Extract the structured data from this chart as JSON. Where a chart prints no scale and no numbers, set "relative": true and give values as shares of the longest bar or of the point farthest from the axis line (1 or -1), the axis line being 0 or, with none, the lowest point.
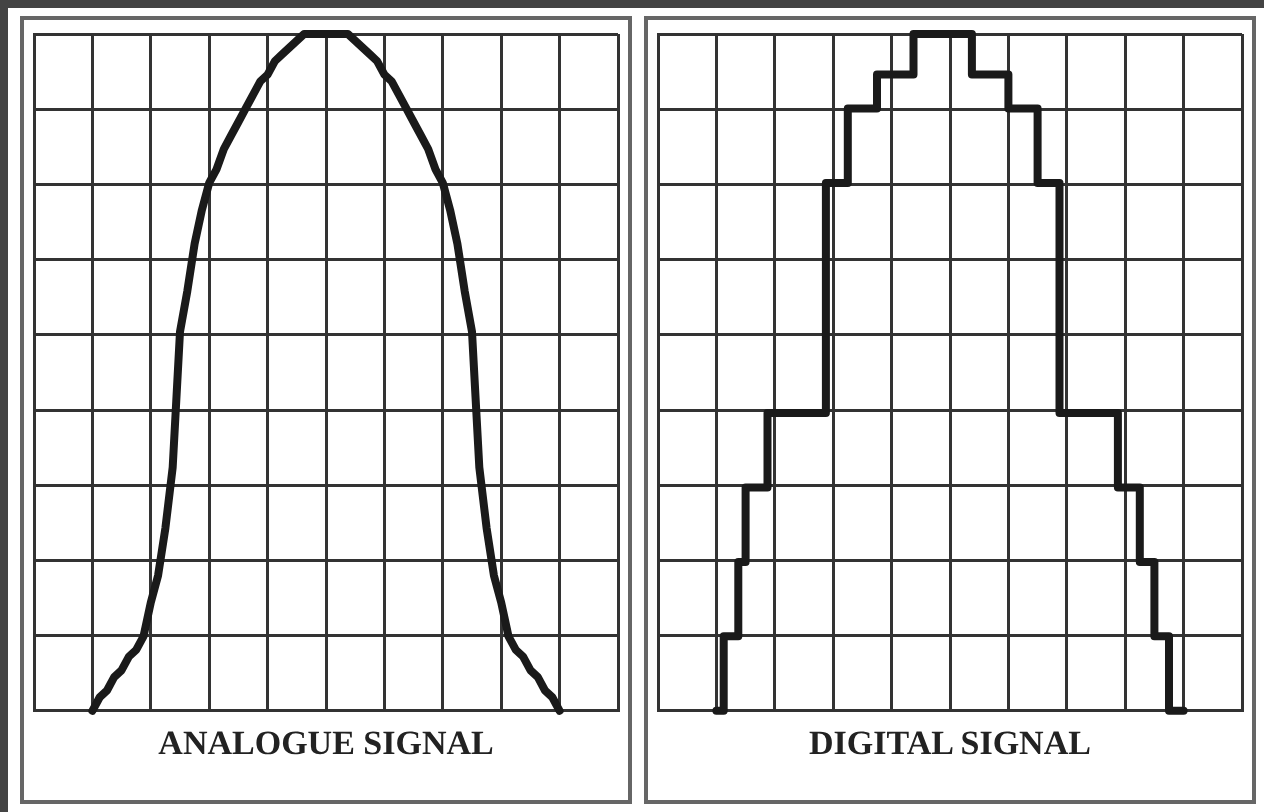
{
  "chart_data": [
    {
      "type": "line",
      "title": "ANALOGUE SIGNAL",
      "relative": true,
      "grid": true,
      "color": "#1a1a1a",
      "marker": "none",
      "line_style": "solid",
      "categories": [
        null,
        null,
        null,
        null,
        null,
        null,
        null,
        null,
        null,
        null,
        null,
        null,
        null,
        null,
        null,
        null,
        null,
        null,
        null,
        null,
        null,
        null,
        null,
        null,
        null,
        null,
        null,
        null,
        null,
        null,
        null,
        null,
        null,
        null,
        null,
        null,
        null,
        null,
        null,
        null,
        null,
        null,
        null,
        null,
        null,
        null,
        null,
        null,
        null,
        null,
        null,
        null,
        null,
        null,
        null,
        null,
        null,
        null,
        null,
        null,
        null,
        null,
        null,
        null,
        null,
        null,
        null,
        null,
        null,
        null,
        null,
        null,
        null,
        null,
        null,
        null,
        null,
        null,
        null,
        null,
        null
      ],
      "values": [
        null,
        null,
        null,
        null,
        null,
        null,
        null,
        null,
        0,
        0.02,
        0.03,
        0.05,
        0.06,
        0.08,
        0.09,
        0.11,
        0.16,
        0.2,
        0.27,
        0.36,
        0.56,
        0.62,
        0.69,
        0.74,
        0.78,
        0.8,
        0.83,
        0.85,
        0.87,
        0.89,
        0.91,
        0.93,
        0.94,
        0.96,
        0.97,
        0.98,
        0.99,
        1,
        1,
        1,
        1,
        1,
        1,
        1,
        0.99,
        0.98,
        0.97,
        0.96,
        0.94,
        0.93,
        0.91,
        0.89,
        0.87,
        0.85,
        0.83,
        0.8,
        0.78,
        0.74,
        0.69,
        0.62,
        0.56,
        0.36,
        0.27,
        0.2,
        0.16,
        0.11,
        0.09,
        0.08,
        0.06,
        0.05,
        0.03,
        0.02,
        0,
        null,
        null,
        null,
        null,
        null,
        null,
        null,
        null
      ]
    },
    {
      "type": "step",
      "title": "DIGITAL SIGNAL",
      "relative": true,
      "grid": true,
      "color": "#1a1a1a",
      "marker": "none",
      "line_style": "solid",
      "categories": [
        null,
        null,
        null,
        null,
        null,
        null,
        null,
        null,
        null,
        null,
        null,
        null,
        null,
        null,
        null,
        null,
        null,
        null,
        null,
        null,
        null,
        null,
        null,
        null,
        null,
        null,
        null,
        null,
        null,
        null,
        null,
        null,
        null,
        null,
        null,
        null,
        null,
        null,
        null,
        null,
        null,
        null,
        null,
        null,
        null,
        null,
        null,
        null,
        null,
        null,
        null,
        null,
        null,
        null,
        null,
        null,
        null,
        null,
        null,
        null,
        null,
        null,
        null,
        null,
        null,
        null,
        null,
        null,
        null,
        null,
        null,
        null,
        null,
        null,
        null,
        null,
        null,
        null,
        null,
        null,
        null
      ],
      "values": [
        null,
        null,
        null,
        null,
        null,
        null,
        null,
        null,
        0,
        0,
        0.11,
        0.11,
        0.22,
        0.33,
        0.33,
        0.33,
        0.44,
        0.44,
        0.44,
        0.44,
        0.44,
        0.44,
        0.44,
        0.44,
        0.78,
        0.78,
        0.78,
        0.89,
        0.89,
        0.89,
        0.89,
        0.94,
        0.94,
        0.94,
        0.94,
        0.94,
        1,
        1,
        1,
        1,
        1,
        1,
        1,
        1,
        0.94,
        0.94,
        0.94,
        0.94,
        0.94,
        0.89,
        0.89,
        0.89,
        0.89,
        0.78,
        0.78,
        0.78,
        0.44,
        0.44,
        0.44,
        0.44,
        0.44,
        0.44,
        0.44,
        0.44,
        0.33,
        0.33,
        0.33,
        0.22,
        0.22,
        0.11,
        0.11,
        0,
        0,
        null,
        null,
        null,
        null,
        null,
        null,
        null,
        null
      ]
    }
  ]
}
